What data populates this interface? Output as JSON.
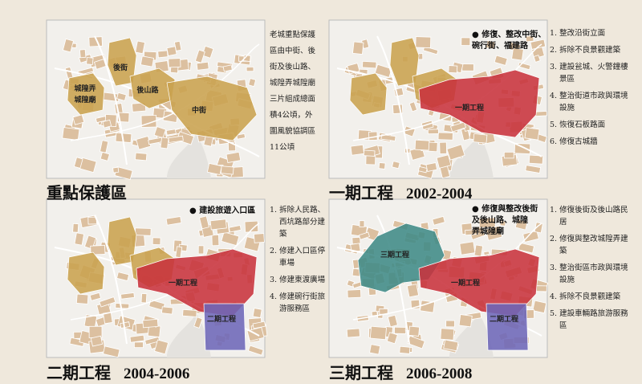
{
  "panels": [
    {
      "title": "重點保護區",
      "map_labels": [
        "後街",
        "城隍弄",
        "城隍廟",
        "後山路",
        "中街"
      ],
      "description": [
        "老城重點保護",
        "區由中街、後",
        "街及後山路、",
        "城隍弄城隍廟",
        "三片組成總面",
        "積4公頃，外",
        "圍風貌協調區",
        "11公頃"
      ]
    },
    {
      "title": "一期工程",
      "period": "2002-2004",
      "callout": [
        "● 修復、整改中街、",
        "碗行街、福建路"
      ],
      "map_labels": [
        "一期工程"
      ],
      "notes": [
        "1. 整改沿街立面",
        "2. 拆除不良景觀建築",
        "3. 建設瓮城、火警鐘樓景區",
        "4. 整治街道市政與環境設施",
        "5. 恢復石板路面",
        "6. 修復古城牆"
      ]
    },
    {
      "title": "二期工程",
      "period": "2004-2006",
      "callout": [
        "● 建設旅遊入口區"
      ],
      "map_labels": [
        "一期工程",
        "二期工程"
      ],
      "notes": [
        "1. 拆除人民路、西坑路部分建築",
        "2. 修建入口區停車場",
        "3. 修建東渡廣場",
        "4. 修建碗行街旅游服務區"
      ]
    },
    {
      "title": "三期工程",
      "period": "2006-2008",
      "callout": [
        "● 修復與整改後街",
        "及後山路、城隍",
        "弄城隍廟"
      ],
      "map_labels": [
        "三期工程",
        "一期工程",
        "二期工程"
      ],
      "notes": [
        "1. 修復後街及後山路民居",
        "2. 修復與整改城隍弄建築",
        "3. 整治街區市政與環境設施",
        "4. 拆除不良景觀建築",
        "5. 建設車輛路旅游服務區"
      ]
    }
  ]
}
